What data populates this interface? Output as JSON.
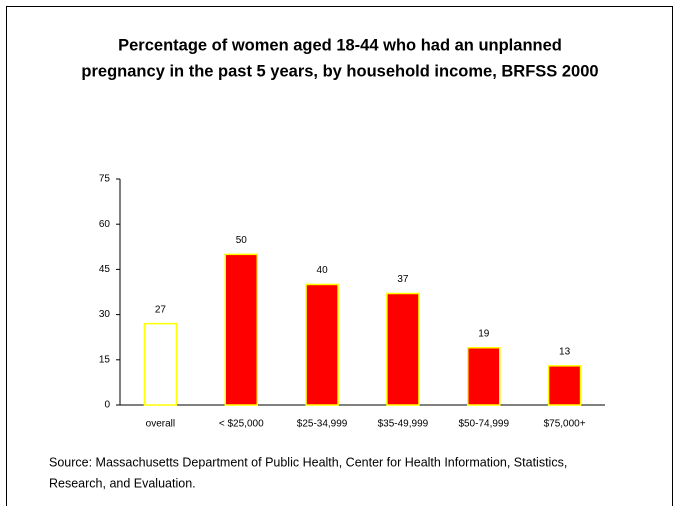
{
  "chart_data": {
    "type": "bar",
    "title": [
      "Percentage of women aged 18-44 who had an unplanned",
      "pregnancy in the past 5 years, by household income, BRFSS 2000"
    ],
    "categories": [
      "overall",
      "< $25,000",
      "$25-34,999",
      "$35-49,999",
      "$50-74,999",
      "$75,000+"
    ],
    "values": [
      27,
      50,
      40,
      37,
      19,
      13
    ],
    "colors": [
      "#ffffff",
      "#ff0000",
      "#ff0000",
      "#ff0000",
      "#ff0000",
      "#ff0000"
    ],
    "edgecolor": "#ffff00",
    "ylim": [
      0,
      75
    ],
    "yticks": [
      0,
      15,
      30,
      45,
      60,
      75
    ],
    "source": [
      "Source: Massachusetts Department of Public Health, Center for Health Information, Statistics,",
      "Research, and Evaluation."
    ]
  }
}
